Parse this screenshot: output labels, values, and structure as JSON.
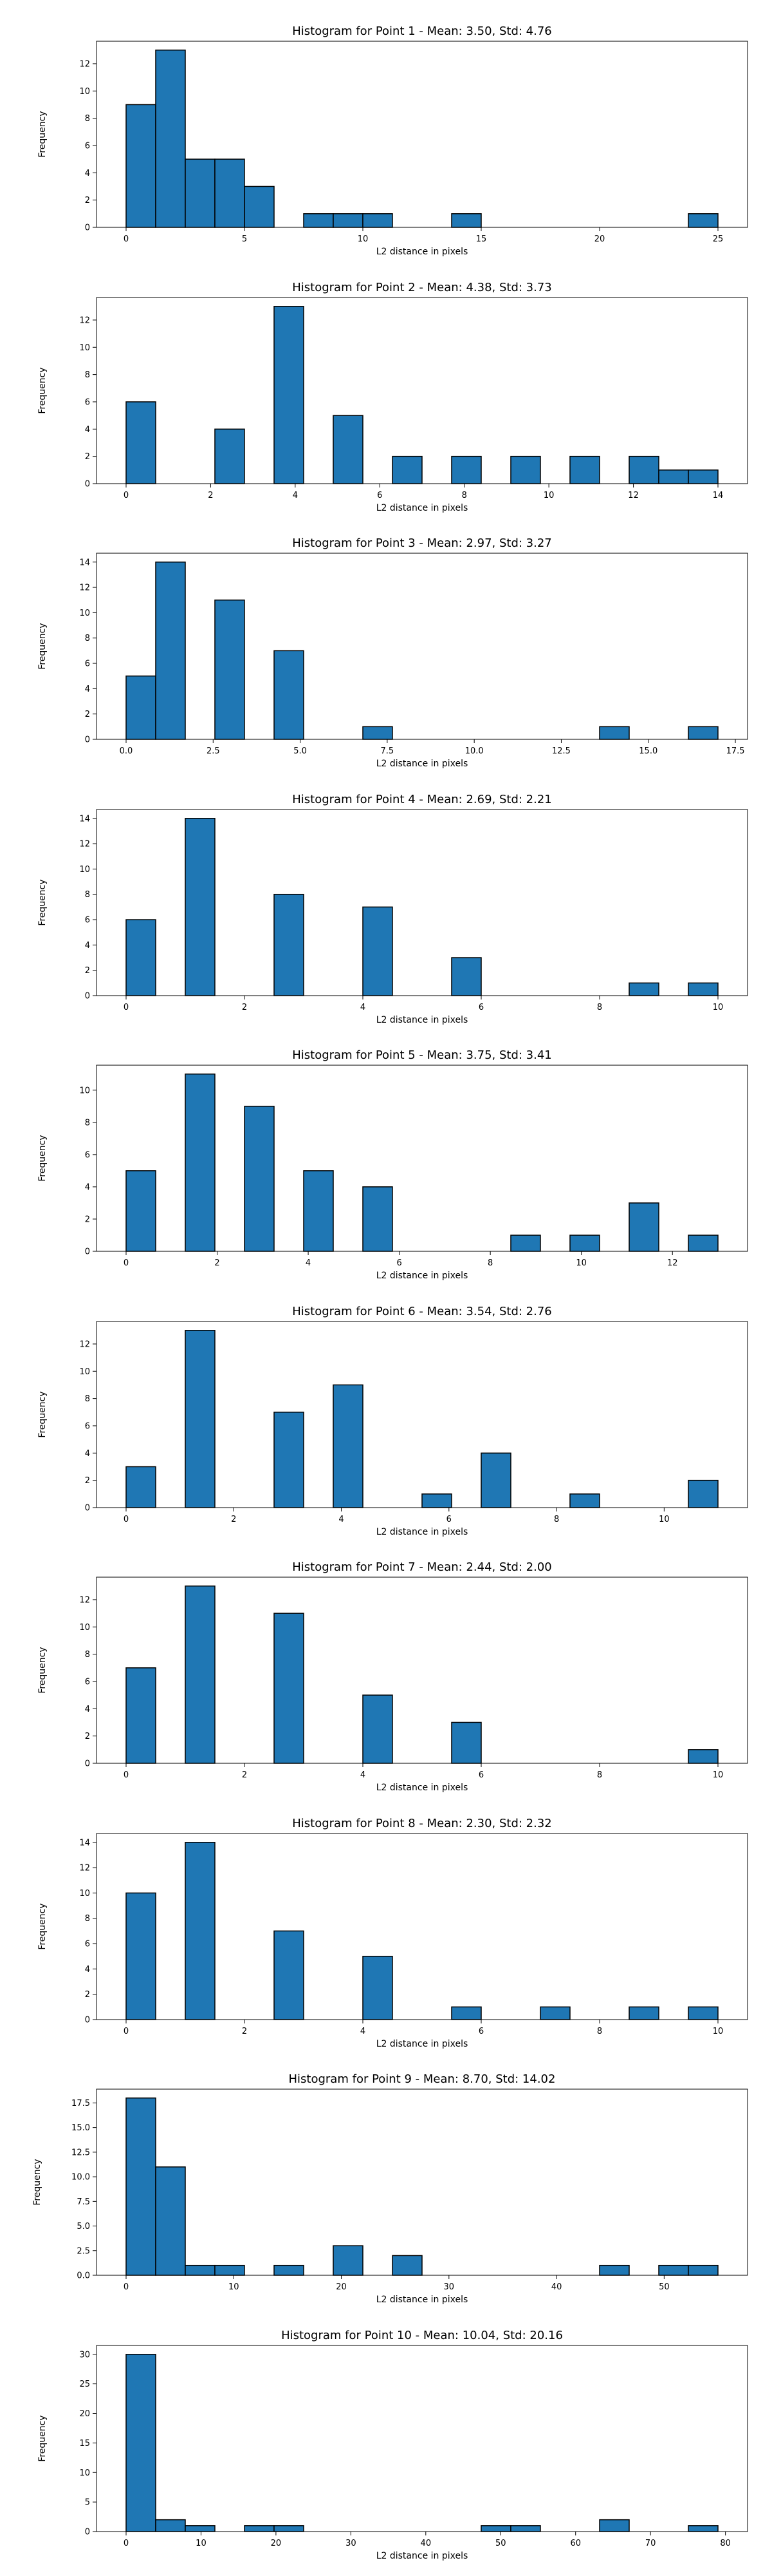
{
  "chart_data": [
    {
      "type": "bar",
      "title": "Histogram for Point 1 - Mean: 3.50, Std: 4.76",
      "xlabel": "L2 distance in pixels",
      "ylabel": "Frequency",
      "xlim": [
        -1.25,
        26.25
      ],
      "ylim": [
        0,
        13.65
      ],
      "xticks": [
        0,
        5,
        10,
        15,
        20,
        25
      ],
      "xtick_labels": [
        "0",
        "5",
        "10",
        "15",
        "20",
        "25"
      ],
      "yticks": [
        0,
        2,
        4,
        6,
        8,
        10,
        12
      ],
      "ytick_labels": [
        "0",
        "2",
        "4",
        "6",
        "8",
        "10",
        "12"
      ],
      "bin_edges": [
        0,
        1.25,
        2.5,
        3.75,
        5,
        6.25,
        7.5,
        8.75,
        10,
        11.25,
        12.5,
        13.75,
        15,
        16.25,
        17.5,
        18.75,
        20,
        21.25,
        22.5,
        23.75,
        25
      ],
      "values": [
        9,
        13,
        5,
        5,
        3,
        0,
        1,
        1,
        1,
        0,
        0,
        1,
        0,
        0,
        0,
        0,
        0,
        0,
        0,
        1
      ],
      "bar_color": "#1f77b4",
      "edge_color": "#000000"
    },
    {
      "type": "bar",
      "title": "Histogram for Point 2 - Mean: 4.38, Std: 3.73",
      "xlabel": "L2 distance in pixels",
      "ylabel": "Frequency",
      "xlim": [
        -0.7,
        14.7
      ],
      "ylim": [
        0,
        13.65
      ],
      "xticks": [
        0,
        2,
        4,
        6,
        8,
        10,
        12,
        14
      ],
      "xtick_labels": [
        "0",
        "2",
        "4",
        "6",
        "8",
        "10",
        "12",
        "14"
      ],
      "yticks": [
        0,
        2,
        4,
        6,
        8,
        10,
        12
      ],
      "ytick_labels": [
        "0",
        "2",
        "4",
        "6",
        "8",
        "10",
        "12"
      ],
      "bin_edges": [
        0,
        0.7,
        1.4,
        2.1,
        2.8,
        3.5,
        4.2,
        4.9,
        5.6,
        6.3,
        7,
        7.7,
        8.4,
        9.1,
        9.8,
        10.5,
        11.2,
        11.9,
        12.6,
        13.3,
        14
      ],
      "values": [
        6,
        0,
        0,
        4,
        0,
        13,
        0,
        5,
        0,
        2,
        0,
        2,
        0,
        2,
        0,
        2,
        0,
        2,
        1,
        1
      ],
      "bar_color": "#1f77b4",
      "edge_color": "#000000"
    },
    {
      "type": "bar",
      "title": "Histogram for Point 3 - Mean: 2.97, Std: 3.27",
      "xlabel": "L2 distance in pixels",
      "ylabel": "Frequency",
      "xlim": [
        -0.85,
        17.85
      ],
      "ylim": [
        0,
        14.7
      ],
      "xticks": [
        0,
        2.5,
        5,
        7.5,
        10,
        12.5,
        15,
        17.5
      ],
      "xtick_labels": [
        "0.0",
        "2.5",
        "5.0",
        "7.5",
        "10.0",
        "12.5",
        "15.0",
        "17.5"
      ],
      "yticks": [
        0,
        2,
        4,
        6,
        8,
        10,
        12,
        14
      ],
      "ytick_labels": [
        "0",
        "2",
        "4",
        "6",
        "8",
        "10",
        "12",
        "14"
      ],
      "bin_edges": [
        0,
        0.85,
        1.7,
        2.55,
        3.4,
        4.25,
        5.1,
        5.95,
        6.8,
        7.65,
        8.5,
        9.35,
        10.2,
        11.05,
        11.9,
        12.75,
        13.6,
        14.45,
        15.3,
        16.15,
        17
      ],
      "values": [
        5,
        14,
        0,
        11,
        0,
        7,
        0,
        0,
        1,
        0,
        0,
        0,
        0,
        0,
        0,
        0,
        1,
        0,
        0,
        1
      ],
      "bar_color": "#1f77b4",
      "edge_color": "#000000"
    },
    {
      "type": "bar",
      "title": "Histogram for Point 4 - Mean: 2.69, Std: 2.21",
      "xlabel": "L2 distance in pixels",
      "ylabel": "Frequency",
      "xlim": [
        -0.5,
        10.5
      ],
      "ylim": [
        0,
        14.7
      ],
      "xticks": [
        0,
        2,
        4,
        6,
        8,
        10
      ],
      "xtick_labels": [
        "0",
        "2",
        "4",
        "6",
        "8",
        "10"
      ],
      "yticks": [
        0,
        2,
        4,
        6,
        8,
        10,
        12,
        14
      ],
      "ytick_labels": [
        "0",
        "2",
        "4",
        "6",
        "8",
        "10",
        "12",
        "14"
      ],
      "bin_edges": [
        0,
        0.5,
        1,
        1.5,
        2,
        2.5,
        3,
        3.5,
        4,
        4.5,
        5,
        5.5,
        6,
        6.5,
        7,
        7.5,
        8,
        8.5,
        9,
        9.5,
        10
      ],
      "values": [
        6,
        0,
        14,
        0,
        0,
        8,
        0,
        0,
        7,
        0,
        0,
        3,
        0,
        0,
        0,
        0,
        0,
        1,
        0,
        1
      ],
      "bar_color": "#1f77b4",
      "edge_color": "#000000"
    },
    {
      "type": "bar",
      "title": "Histogram for Point 5 - Mean: 3.75, Std: 3.41",
      "xlabel": "L2 distance in pixels",
      "ylabel": "Frequency",
      "xlim": [
        -0.65,
        13.65
      ],
      "ylim": [
        0,
        11.55
      ],
      "xticks": [
        0,
        2,
        4,
        6,
        8,
        10,
        12
      ],
      "xtick_labels": [
        "0",
        "2",
        "4",
        "6",
        "8",
        "10",
        "12"
      ],
      "yticks": [
        0,
        2,
        4,
        6,
        8,
        10
      ],
      "ytick_labels": [
        "0",
        "2",
        "4",
        "6",
        "8",
        "10"
      ],
      "bin_edges": [
        0,
        0.65,
        1.3,
        1.95,
        2.6,
        3.25,
        3.9,
        4.55,
        5.2,
        5.85,
        6.5,
        7.15,
        7.8,
        8.45,
        9.1,
        9.75,
        10.4,
        11.05,
        11.7,
        12.35,
        13
      ],
      "values": [
        5,
        0,
        11,
        0,
        9,
        0,
        5,
        0,
        4,
        0,
        0,
        0,
        0,
        1,
        0,
        1,
        0,
        3,
        0,
        1
      ],
      "bar_color": "#1f77b4",
      "edge_color": "#000000"
    },
    {
      "type": "bar",
      "title": "Histogram for Point 6 - Mean: 3.54, Std: 2.76",
      "xlabel": "L2 distance in pixels",
      "ylabel": "Frequency",
      "xlim": [
        -0.55,
        11.55
      ],
      "ylim": [
        0,
        13.65
      ],
      "xticks": [
        0,
        2,
        4,
        6,
        8,
        10
      ],
      "xtick_labels": [
        "0",
        "2",
        "4",
        "6",
        "8",
        "10"
      ],
      "yticks": [
        0,
        2,
        4,
        6,
        8,
        10,
        12
      ],
      "ytick_labels": [
        "0",
        "2",
        "4",
        "6",
        "8",
        "10",
        "12"
      ],
      "bin_edges": [
        0,
        0.55,
        1.1,
        1.65,
        2.2,
        2.75,
        3.3,
        3.85,
        4.4,
        4.95,
        5.5,
        6.05,
        6.6,
        7.15,
        7.7,
        8.25,
        8.8,
        9.35,
        9.9,
        10.45,
        11
      ],
      "values": [
        3,
        0,
        13,
        0,
        0,
        7,
        0,
        9,
        0,
        0,
        1,
        0,
        4,
        0,
        0,
        1,
        0,
        0,
        0,
        2
      ],
      "bar_color": "#1f77b4",
      "edge_color": "#000000"
    },
    {
      "type": "bar",
      "title": "Histogram for Point 7 - Mean: 2.44, Std: 2.00",
      "xlabel": "L2 distance in pixels",
      "ylabel": "Frequency",
      "xlim": [
        -0.5,
        10.5
      ],
      "ylim": [
        0,
        13.65
      ],
      "xticks": [
        0,
        2,
        4,
        6,
        8,
        10
      ],
      "xtick_labels": [
        "0",
        "2",
        "4",
        "6",
        "8",
        "10"
      ],
      "yticks": [
        0,
        2,
        4,
        6,
        8,
        10,
        12
      ],
      "ytick_labels": [
        "0",
        "2",
        "4",
        "6",
        "8",
        "10",
        "12"
      ],
      "bin_edges": [
        0,
        0.5,
        1,
        1.5,
        2,
        2.5,
        3,
        3.5,
        4,
        4.5,
        5,
        5.5,
        6,
        6.5,
        7,
        7.5,
        8,
        8.5,
        9,
        9.5,
        10
      ],
      "values": [
        7,
        0,
        13,
        0,
        0,
        11,
        0,
        0,
        5,
        0,
        0,
        3,
        0,
        0,
        0,
        0,
        0,
        0,
        0,
        1
      ],
      "bar_color": "#1f77b4",
      "edge_color": "#000000"
    },
    {
      "type": "bar",
      "title": "Histogram for Point 8 - Mean: 2.30, Std: 2.32",
      "xlabel": "L2 distance in pixels",
      "ylabel": "Frequency",
      "xlim": [
        -0.5,
        10.5
      ],
      "ylim": [
        0,
        14.7
      ],
      "xticks": [
        0,
        2,
        4,
        6,
        8,
        10
      ],
      "xtick_labels": [
        "0",
        "2",
        "4",
        "6",
        "8",
        "10"
      ],
      "yticks": [
        0,
        2,
        4,
        6,
        8,
        10,
        12,
        14
      ],
      "ytick_labels": [
        "0",
        "2",
        "4",
        "6",
        "8",
        "10",
        "12",
        "14"
      ],
      "bin_edges": [
        0,
        0.5,
        1,
        1.5,
        2,
        2.5,
        3,
        3.5,
        4,
        4.5,
        5,
        5.5,
        6,
        6.5,
        7,
        7.5,
        8,
        8.5,
        9,
        9.5,
        10
      ],
      "values": [
        10,
        0,
        14,
        0,
        0,
        7,
        0,
        0,
        5,
        0,
        0,
        1,
        0,
        0,
        1,
        0,
        0,
        1,
        0,
        1
      ],
      "bar_color": "#1f77b4",
      "edge_color": "#000000"
    },
    {
      "type": "bar",
      "title": "Histogram for Point 9 - Mean: 8.70, Std: 14.02",
      "xlabel": "L2 distance in pixels",
      "ylabel": "Frequency",
      "xlim": [
        -2.75,
        57.75
      ],
      "ylim": [
        0,
        18.9
      ],
      "xticks": [
        0,
        10,
        20,
        30,
        40,
        50
      ],
      "xtick_labels": [
        "0",
        "10",
        "20",
        "30",
        "40",
        "50"
      ],
      "yticks": [
        0,
        2.5,
        5,
        7.5,
        10,
        12.5,
        15,
        17.5
      ],
      "ytick_labels": [
        "0.0",
        "2.5",
        "5.0",
        "7.5",
        "10.0",
        "12.5",
        "15.0",
        "17.5"
      ],
      "bin_edges": [
        0,
        2.75,
        5.5,
        8.25,
        11,
        13.75,
        16.5,
        19.25,
        22,
        24.75,
        27.5,
        30.25,
        33,
        35.75,
        38.5,
        41.25,
        44,
        46.75,
        49.5,
        52.25,
        55
      ],
      "values": [
        18,
        11,
        1,
        1,
        0,
        1,
        0,
        3,
        0,
        2,
        0,
        0,
        0,
        0,
        0,
        0,
        1,
        0,
        1,
        1
      ],
      "bar_color": "#1f77b4",
      "edge_color": "#000000"
    },
    {
      "type": "bar",
      "title": "Histogram for Point 10 - Mean: 10.04, Std: 20.16",
      "xlabel": "L2 distance in pixels",
      "ylabel": "Frequency",
      "xlim": [
        -3.95,
        82.95
      ],
      "ylim": [
        0,
        31.5
      ],
      "xticks": [
        0,
        10,
        20,
        30,
        40,
        50,
        60,
        70,
        80
      ],
      "xtick_labels": [
        "0",
        "10",
        "20",
        "30",
        "40",
        "50",
        "60",
        "70",
        "80"
      ],
      "yticks": [
        0,
        5,
        10,
        15,
        20,
        25,
        30
      ],
      "ytick_labels": [
        "0",
        "5",
        "10",
        "15",
        "20",
        "25",
        "30"
      ],
      "bin_edges": [
        0,
        3.95,
        7.9,
        11.85,
        15.8,
        19.75,
        23.7,
        27.65,
        31.6,
        35.55,
        39.5,
        43.45,
        47.4,
        51.35,
        55.3,
        59.25,
        63.2,
        67.15,
        71.1,
        75.05,
        79
      ],
      "values": [
        30,
        2,
        1,
        0,
        1,
        1,
        0,
        0,
        0,
        0,
        0,
        0,
        1,
        1,
        0,
        0,
        2,
        0,
        0,
        1
      ],
      "bar_color": "#1f77b4",
      "edge_color": "#000000"
    }
  ]
}
